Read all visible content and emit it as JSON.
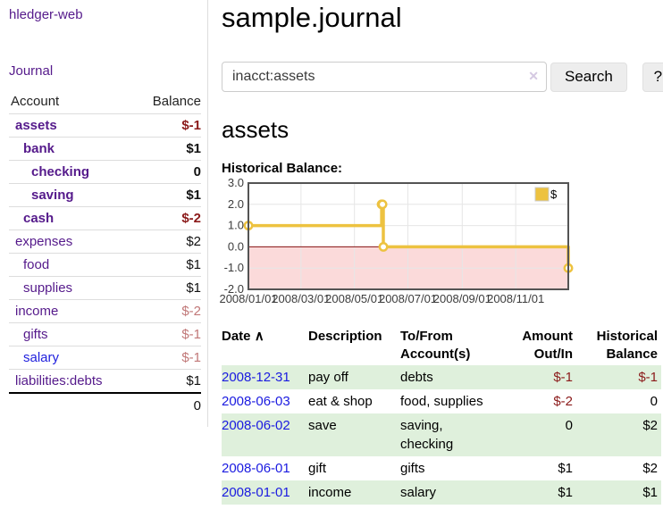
{
  "app": {
    "name": "hledger-web"
  },
  "sidebar": {
    "app_title": "hledger-web",
    "journal_link": "Journal",
    "accounts_table": {
      "headers": {
        "account": "Account",
        "balance": "Balance"
      },
      "rows": [
        {
          "account": "assets",
          "balance": "$-1",
          "depth": 0,
          "emphasis": true,
          "balance_tone": "negative-strong",
          "link_color": "purple"
        },
        {
          "account": "bank",
          "balance": "$1",
          "depth": 1,
          "emphasis": true,
          "balance_tone": "normal",
          "link_color": "purple"
        },
        {
          "account": "checking",
          "balance": "0",
          "depth": 2,
          "emphasis": true,
          "balance_tone": "normal",
          "link_color": "purple"
        },
        {
          "account": "saving",
          "balance": "$1",
          "depth": 2,
          "emphasis": true,
          "balance_tone": "normal",
          "link_color": "purple"
        },
        {
          "account": "cash",
          "balance": "$-2",
          "depth": 1,
          "emphasis": true,
          "balance_tone": "negative-strong",
          "link_color": "purple"
        },
        {
          "account": "expenses",
          "balance": "$2",
          "depth": 0,
          "emphasis": false,
          "balance_tone": "normal",
          "link_color": "purple"
        },
        {
          "account": "food",
          "balance": "$1",
          "depth": 1,
          "emphasis": false,
          "balance_tone": "normal",
          "link_color": "purple"
        },
        {
          "account": "supplies",
          "balance": "$1",
          "depth": 1,
          "emphasis": false,
          "balance_tone": "normal",
          "link_color": "purple"
        },
        {
          "account": "income",
          "balance": "$-2",
          "depth": 0,
          "emphasis": false,
          "balance_tone": "negative-soft",
          "link_color": "purple"
        },
        {
          "account": "gifts",
          "balance": "$-1",
          "depth": 1,
          "emphasis": false,
          "balance_tone": "negative-soft",
          "link_color": "purple"
        },
        {
          "account": "salary",
          "balance": "$-1",
          "depth": 1,
          "emphasis": false,
          "balance_tone": "negative-soft",
          "link_color": "blue"
        },
        {
          "account": "liabilities:debts",
          "balance": "$1",
          "depth": 0,
          "emphasis": false,
          "balance_tone": "normal",
          "link_color": "purple"
        }
      ],
      "total": "0"
    }
  },
  "main": {
    "title": "sample.journal",
    "search": {
      "value": "inacct:assets",
      "clear_icon": "✕",
      "button_label": "Search",
      "help_label": "?"
    },
    "account_heading": "assets",
    "chart_label": "Historical Balance:",
    "register_table": {
      "headers": {
        "date": "Date",
        "description": "Description",
        "accounts": "To/From Account(s)",
        "amount": "Amount Out/In",
        "balance": "Historical Balance"
      },
      "sort_icon": "∧",
      "rows": [
        {
          "date": "2008-12-31",
          "description": "pay off",
          "accounts": "debts",
          "amount": "$-1",
          "balance": "$-1",
          "amount_tone": "negative",
          "balance_tone": "negative"
        },
        {
          "date": "2008-06-03",
          "description": "eat & shop",
          "accounts": "food, supplies",
          "amount": "$-2",
          "balance": "0",
          "amount_tone": "negative",
          "balance_tone": "normal"
        },
        {
          "date": "2008-06-02",
          "description": "save",
          "accounts": "saving, checking",
          "amount": "0",
          "balance": "$2",
          "amount_tone": "normal",
          "balance_tone": "normal"
        },
        {
          "date": "2008-06-01",
          "description": "gift",
          "accounts": "gifts",
          "amount": "$1",
          "balance": "$2",
          "amount_tone": "normal",
          "balance_tone": "normal"
        },
        {
          "date": "2008-01-01",
          "description": "income",
          "accounts": "salary",
          "amount": "$1",
          "balance": "$1",
          "amount_tone": "normal",
          "balance_tone": "normal"
        }
      ]
    }
  },
  "chart_data": {
    "type": "line",
    "title": "Historical Balance",
    "steps": true,
    "series": [
      {
        "name": "$",
        "color": "#edc240",
        "x_dates": [
          "2008-01-01",
          "2008-06-01",
          "2008-06-02",
          "2008-06-03",
          "2008-12-31"
        ],
        "x_days": [
          0,
          152,
          153,
          154,
          365
        ],
        "values": [
          1,
          2,
          2,
          0,
          -1
        ]
      }
    ],
    "xlim_days": [
      0,
      365
    ],
    "ylim": [
      -2,
      3
    ],
    "yticks": [
      {
        "v": 3,
        "label": "3.0"
      },
      {
        "v": 2,
        "label": "2.0"
      },
      {
        "v": 1,
        "label": "1.0"
      },
      {
        "v": 0,
        "label": "0.0"
      },
      {
        "v": -1,
        "label": "-1.0"
      },
      {
        "v": -2,
        "label": "-2.0"
      }
    ],
    "xticks": [
      {
        "v": 0,
        "label": "2008/01/01"
      },
      {
        "v": 60,
        "label": "2008/03/01"
      },
      {
        "v": 121,
        "label": "2008/05/01"
      },
      {
        "v": 182,
        "label": "2008/07/01"
      },
      {
        "v": 244,
        "label": "2008/09/01"
      },
      {
        "v": 305,
        "label": "2008/11/01"
      }
    ],
    "legend": {
      "label": "$",
      "position": "top-right"
    },
    "grid": true,
    "negative_fill": "#fbdada",
    "zero_line_color": "#871111",
    "plot_border_color": "#545454"
  },
  "colors": {
    "link_purple": "#551a8b",
    "link_blue": "#2121dd",
    "date_link_blue": "#1a1ae0",
    "negative_strong": "#8b1a1a",
    "negative_soft": "#c17878",
    "row_shade_green": "#dff0dc",
    "chart_yellow": "#edc240",
    "button_gray": "#ededed"
  }
}
